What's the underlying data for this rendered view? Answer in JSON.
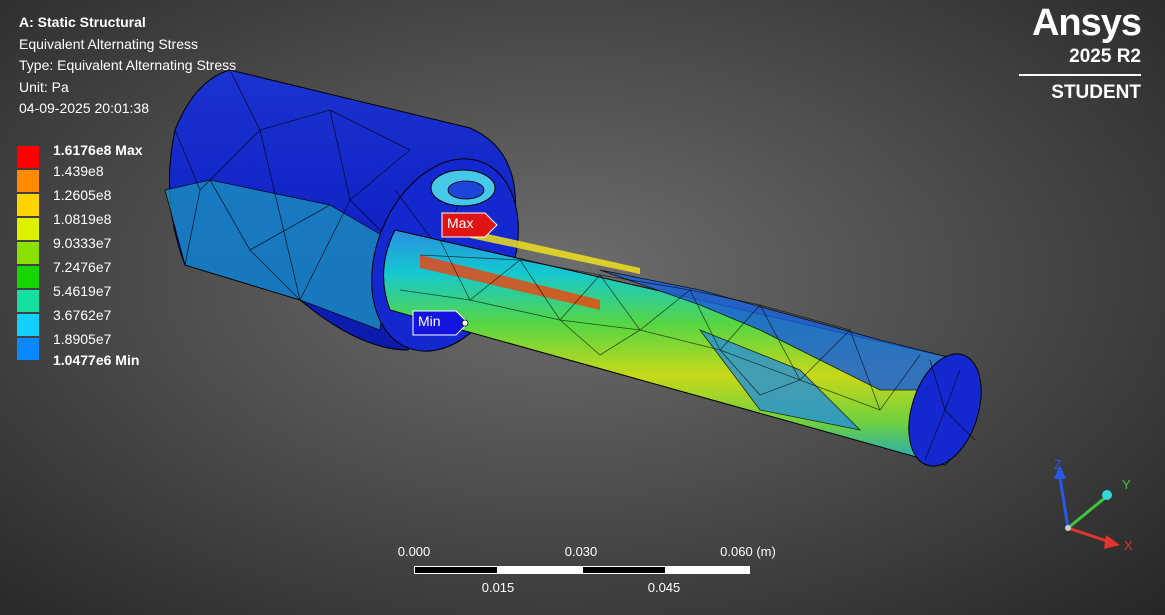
{
  "info": {
    "title": "A: Static Structural",
    "result": "Equivalent Alternating Stress",
    "type": "Type: Equivalent Alternating Stress",
    "unit": "Unit: Pa",
    "timestamp": "04-09-2025 20:01:38"
  },
  "legend": {
    "labels": [
      "1.6176e8 Max",
      "1.439e8",
      "1.2605e8",
      "1.0819e8",
      "9.0333e7",
      "7.2476e7",
      "5.4619e7",
      "3.6762e7",
      "1.8905e7",
      "1.0477e6 Min"
    ],
    "colors": [
      "#ff0000",
      "#ff8a00",
      "#ffd400",
      "#ddf000",
      "#8ae000",
      "#17d600",
      "#16e0a0",
      "#12d0ff",
      "#0a88ff",
      "#0000ff"
    ]
  },
  "brand": {
    "name": "Ansys",
    "version": "2025 R2",
    "edition": "STUDENT"
  },
  "probes": {
    "max_label": "Max",
    "min_label": "Min"
  },
  "scale_bar": {
    "top_labels": [
      "0.000",
      "0.030",
      "0.060 (m)"
    ],
    "bottom_labels": [
      "0.015",
      "0.045"
    ]
  },
  "triad": {
    "x_label": "X",
    "y_label": "Y",
    "z_label": "Z",
    "x_color": "#e0342c",
    "y_color": "#3ec43a",
    "z_color": "#2a57e8"
  }
}
